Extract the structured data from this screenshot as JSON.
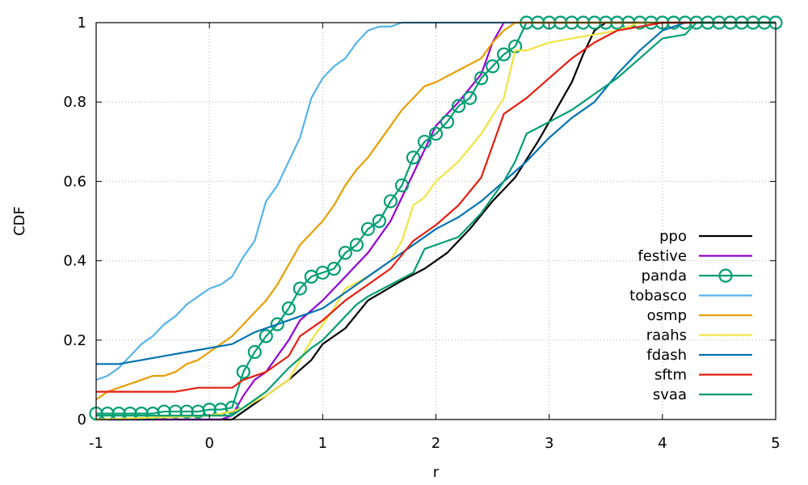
{
  "chart_data": {
    "type": "line",
    "xlabel": "r",
    "ylabel": "CDF",
    "xlim": [
      -1,
      5
    ],
    "ylim": [
      0,
      1
    ],
    "xticks": [
      "-1",
      "0",
      "1",
      "2",
      "3",
      "4",
      "5"
    ],
    "yticks": [
      "0",
      "0.2",
      "0.4",
      "0.6",
      "0.8",
      "1"
    ],
    "grid": true,
    "legend_position": "bottom-right",
    "series": [
      {
        "name": "ppo",
        "color": "#000000",
        "marker": "none",
        "x": [
          -1,
          0.2,
          0.3,
          0.5,
          0.7,
          0.9,
          1.0,
          1.2,
          1.4,
          1.7,
          1.9,
          2.1,
          2.3,
          2.5,
          2.7,
          2.9,
          3.0,
          3.1,
          3.2,
          3.3,
          3.4,
          3.5,
          3.7,
          4.0,
          5
        ],
        "y": [
          0.0,
          0.0,
          0.02,
          0.06,
          0.1,
          0.15,
          0.19,
          0.23,
          0.3,
          0.35,
          0.38,
          0.42,
          0.48,
          0.55,
          0.61,
          0.7,
          0.75,
          0.8,
          0.85,
          0.92,
          0.98,
          1.0,
          1.0,
          1.0,
          1.0
        ]
      },
      {
        "name": "festive",
        "color": "#9400d3",
        "marker": "none",
        "x": [
          -1,
          0.1,
          0.2,
          0.3,
          0.4,
          0.5,
          0.6,
          0.7,
          0.8,
          1.0,
          1.2,
          1.4,
          1.6,
          1.8,
          2.0,
          2.2,
          2.4,
          2.5,
          2.6,
          2.7,
          5
        ],
        "y": [
          0.0,
          0.0,
          0.01,
          0.06,
          0.1,
          0.12,
          0.16,
          0.2,
          0.25,
          0.3,
          0.36,
          0.42,
          0.5,
          0.62,
          0.74,
          0.8,
          0.87,
          0.95,
          1.0,
          1.0,
          1.0
        ]
      },
      {
        "name": "panda",
        "color": "#009e73",
        "marker": "circle",
        "x": [
          -1,
          -0.9,
          -0.8,
          -0.7,
          -0.6,
          -0.5,
          -0.4,
          -0.3,
          -0.2,
          -0.1,
          0.0,
          0.1,
          0.2,
          0.3,
          0.4,
          0.5,
          0.6,
          0.7,
          0.8,
          0.9,
          1.0,
          1.1,
          1.2,
          1.3,
          1.4,
          1.5,
          1.6,
          1.7,
          1.8,
          1.9,
          2.0,
          2.1,
          2.2,
          2.3,
          2.4,
          2.5,
          2.6,
          2.7,
          2.8,
          2.9,
          3.0,
          3.1,
          3.2,
          3.3,
          3.4,
          3.5,
          3.6,
          3.7,
          3.8,
          3.9,
          4.0,
          4.1,
          4.2,
          4.3,
          4.4,
          4.5,
          4.6,
          4.7,
          4.8,
          4.9,
          5.0
        ],
        "y": [
          0.015,
          0.015,
          0.015,
          0.015,
          0.015,
          0.015,
          0.02,
          0.02,
          0.02,
          0.02,
          0.025,
          0.025,
          0.03,
          0.12,
          0.17,
          0.21,
          0.24,
          0.28,
          0.33,
          0.36,
          0.37,
          0.38,
          0.42,
          0.44,
          0.48,
          0.5,
          0.55,
          0.59,
          0.66,
          0.7,
          0.72,
          0.75,
          0.79,
          0.81,
          0.86,
          0.89,
          0.92,
          0.94,
          1.0,
          1.0,
          1.0,
          1.0,
          1.0,
          1.0,
          1.0,
          1.0,
          1.0,
          1.0,
          1.0,
          1.0,
          1.0,
          1.0,
          1.0,
          1.0,
          1.0,
          1.0,
          1.0,
          1.0,
          1.0,
          1.0,
          1.0
        ]
      },
      {
        "name": "tobasco",
        "color": "#56b4e9",
        "marker": "none",
        "x": [
          -1,
          -0.9,
          -0.8,
          -0.7,
          -0.6,
          -0.5,
          -0.4,
          -0.3,
          -0.2,
          -0.1,
          0.0,
          0.1,
          0.2,
          0.3,
          0.4,
          0.5,
          0.6,
          0.7,
          0.8,
          0.9,
          1.0,
          1.1,
          1.2,
          1.3,
          1.4,
          1.5,
          1.6,
          1.7,
          1.8,
          2.0,
          5
        ],
        "y": [
          0.1,
          0.11,
          0.13,
          0.16,
          0.19,
          0.21,
          0.24,
          0.26,
          0.29,
          0.31,
          0.33,
          0.34,
          0.36,
          0.41,
          0.45,
          0.55,
          0.59,
          0.65,
          0.71,
          0.81,
          0.86,
          0.89,
          0.91,
          0.95,
          0.98,
          0.99,
          0.99,
          1.0,
          1.0,
          1.0,
          1.0
        ]
      },
      {
        "name": "osmp",
        "color": "#e69f00",
        "marker": "none",
        "x": [
          -1,
          -0.9,
          -0.8,
          -0.7,
          -0.6,
          -0.5,
          -0.4,
          -0.3,
          -0.2,
          -0.1,
          0.0,
          0.1,
          0.2,
          0.3,
          0.4,
          0.5,
          0.6,
          0.7,
          0.8,
          0.9,
          1.0,
          1.1,
          1.2,
          1.3,
          1.4,
          1.5,
          1.6,
          1.7,
          1.8,
          1.9,
          2.0,
          2.2,
          2.4,
          2.5,
          2.6,
          2.7,
          2.8,
          5
        ],
        "y": [
          0.05,
          0.07,
          0.08,
          0.09,
          0.1,
          0.11,
          0.11,
          0.12,
          0.14,
          0.15,
          0.17,
          0.19,
          0.21,
          0.24,
          0.27,
          0.3,
          0.34,
          0.39,
          0.44,
          0.47,
          0.5,
          0.54,
          0.59,
          0.63,
          0.66,
          0.7,
          0.74,
          0.78,
          0.81,
          0.84,
          0.85,
          0.88,
          0.91,
          0.95,
          0.98,
          1.0,
          1.0,
          1.0
        ]
      },
      {
        "name": "raahs",
        "color": "#f0e442",
        "marker": "none",
        "x": [
          -1,
          0.0,
          0.2,
          0.3,
          0.5,
          0.7,
          0.8,
          0.9,
          1.0,
          1.1,
          1.2,
          1.4,
          1.6,
          1.7,
          1.8,
          1.9,
          2.0,
          2.2,
          2.4,
          2.6,
          2.7,
          2.8,
          3.0,
          3.2,
          3.4,
          3.6,
          3.8,
          4.0,
          5
        ],
        "y": [
          0.0,
          0.01,
          0.02,
          0.03,
          0.06,
          0.1,
          0.15,
          0.2,
          0.24,
          0.28,
          0.33,
          0.36,
          0.4,
          0.45,
          0.54,
          0.56,
          0.6,
          0.65,
          0.72,
          0.81,
          0.93,
          0.93,
          0.95,
          0.96,
          0.97,
          0.98,
          1.0,
          1.0,
          1.0
        ]
      },
      {
        "name": "fdash",
        "color": "#0072b2",
        "marker": "none",
        "x": [
          -1,
          -0.8,
          -0.6,
          -0.4,
          -0.2,
          0.0,
          0.2,
          0.4,
          0.6,
          0.8,
          1.0,
          1.2,
          1.4,
          1.6,
          1.8,
          2.0,
          2.2,
          2.4,
          2.6,
          2.8,
          3.0,
          3.2,
          3.4,
          3.6,
          3.8,
          4.0,
          4.2,
          5
        ],
        "y": [
          0.14,
          0.14,
          0.15,
          0.16,
          0.17,
          0.18,
          0.19,
          0.22,
          0.24,
          0.26,
          0.28,
          0.32,
          0.36,
          0.4,
          0.44,
          0.48,
          0.51,
          0.55,
          0.6,
          0.65,
          0.71,
          0.76,
          0.8,
          0.87,
          0.93,
          0.98,
          1.0,
          1.0
        ]
      },
      {
        "name": "sftm",
        "color": "#e51e10",
        "marker": "none",
        "x": [
          -1,
          -0.5,
          -0.3,
          -0.1,
          0.1,
          0.2,
          0.3,
          0.5,
          0.7,
          0.8,
          1.0,
          1.2,
          1.4,
          1.6,
          1.8,
          2.0,
          2.2,
          2.4,
          2.5,
          2.6,
          2.8,
          3.0,
          3.2,
          3.4,
          3.6,
          3.8,
          4.0,
          5
        ],
        "y": [
          0.07,
          0.07,
          0.07,
          0.08,
          0.08,
          0.08,
          0.1,
          0.12,
          0.16,
          0.21,
          0.25,
          0.3,
          0.34,
          0.38,
          0.45,
          0.49,
          0.54,
          0.61,
          0.69,
          0.77,
          0.81,
          0.86,
          0.91,
          0.95,
          0.98,
          0.99,
          1.0,
          1.0
        ]
      },
      {
        "name": "svaa",
        "color": "#009e73",
        "marker": "none",
        "x": [
          -1,
          0.0,
          0.2,
          0.3,
          0.5,
          0.7,
          0.9,
          1.0,
          1.1,
          1.2,
          1.3,
          1.4,
          1.6,
          1.8,
          1.9,
          2.0,
          2.2,
          2.4,
          2.6,
          2.7,
          2.8,
          3.0,
          3.2,
          3.4,
          3.6,
          3.8,
          4.0,
          4.2,
          4.3,
          5
        ],
        "y": [
          0.01,
          0.01,
          0.01,
          0.03,
          0.07,
          0.13,
          0.18,
          0.2,
          0.23,
          0.26,
          0.29,
          0.31,
          0.34,
          0.37,
          0.43,
          0.44,
          0.46,
          0.52,
          0.6,
          0.65,
          0.72,
          0.75,
          0.78,
          0.82,
          0.86,
          0.91,
          0.96,
          0.97,
          1.0,
          1.0
        ]
      }
    ]
  }
}
